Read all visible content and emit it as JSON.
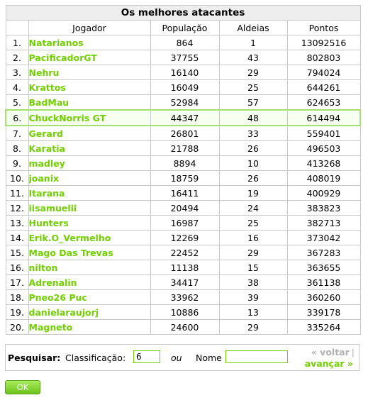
{
  "table": {
    "title": "Os melhores atacantes",
    "columns": [
      "Jogador",
      "População",
      "Aldeias",
      "Pontos"
    ],
    "rows": [
      {
        "pos": "1.",
        "player": "Natarianos",
        "population": "864",
        "villages": "1",
        "points": "13092516"
      },
      {
        "pos": "2.",
        "player": "PacificadorGT",
        "population": "37755",
        "villages": "43",
        "points": "802803"
      },
      {
        "pos": "3.",
        "player": "Nehru",
        "population": "16140",
        "villages": "29",
        "points": "794024"
      },
      {
        "pos": "4.",
        "player": "Krattos",
        "population": "16049",
        "villages": "25",
        "points": "644261"
      },
      {
        "pos": "5.",
        "player": "BadMau",
        "population": "52984",
        "villages": "57",
        "points": "624653"
      },
      {
        "pos": "6.",
        "player": "ChuckNorris GT",
        "population": "44347",
        "villages": "48",
        "points": "614494"
      },
      {
        "pos": "7.",
        "player": "Gerard",
        "population": "26801",
        "villages": "33",
        "points": "559401"
      },
      {
        "pos": "8.",
        "player": "Karatia",
        "population": "21788",
        "villages": "26",
        "points": "496503"
      },
      {
        "pos": "9.",
        "player": "madley",
        "population": "8894",
        "villages": "10",
        "points": "413268"
      },
      {
        "pos": "10.",
        "player": "joanix",
        "population": "18759",
        "villages": "26",
        "points": "408019"
      },
      {
        "pos": "11.",
        "player": "Itarana",
        "population": "16411",
        "villages": "19",
        "points": "400929"
      },
      {
        "pos": "12.",
        "player": "iisamuelii",
        "population": "20494",
        "villages": "24",
        "points": "383823"
      },
      {
        "pos": "13.",
        "player": "Hunters",
        "population": "16987",
        "villages": "25",
        "points": "382713"
      },
      {
        "pos": "14.",
        "player": "Erik.O_Vermelho",
        "population": "12269",
        "villages": "16",
        "points": "373042"
      },
      {
        "pos": "15.",
        "player": "Mago Das Trevas",
        "population": "22452",
        "villages": "29",
        "points": "367283"
      },
      {
        "pos": "16.",
        "player": "nilton",
        "population": "11138",
        "villages": "15",
        "points": "363655"
      },
      {
        "pos": "17.",
        "player": "Adrenalin",
        "population": "34417",
        "villages": "38",
        "points": "361138"
      },
      {
        "pos": "18.",
        "player": "Pneo26 Puc",
        "population": "33962",
        "villages": "39",
        "points": "360260"
      },
      {
        "pos": "19.",
        "player": "danielaraujorj",
        "population": "10886",
        "villages": "13",
        "points": "339178"
      },
      {
        "pos": "20.",
        "player": "Magneto",
        "population": "24600",
        "villages": "29",
        "points": "335264"
      }
    ],
    "highlighted_row": 6
  },
  "search": {
    "label": "Pesquisar:",
    "rank_label": "Classificação:",
    "rank_value": "6",
    "or_label": "ou",
    "name_label": "Nome",
    "name_value": "",
    "back_label": "« voltar",
    "separator": "|",
    "forward_label": "avançar »"
  },
  "ok_button": {
    "label": "OK"
  },
  "colors": {
    "link": "#71d000",
    "highlight_border": "#a4e170",
    "border": "#c8c8c8"
  }
}
